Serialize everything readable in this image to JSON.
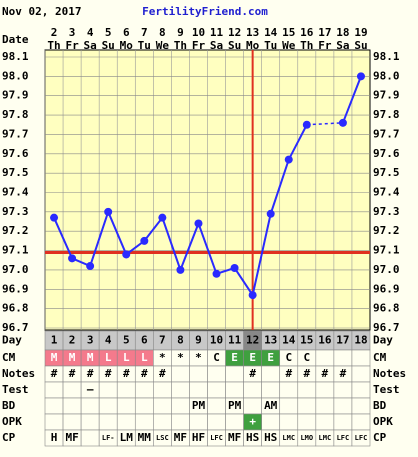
{
  "header": {
    "date": "Nov 02, 2017",
    "site": "FertilityFriend.com",
    "date_label": "Date"
  },
  "chart_data": {
    "type": "line",
    "categories": [
      "2",
      "3",
      "4",
      "5",
      "6",
      "7",
      "8",
      "9",
      "10",
      "11",
      "12",
      "13",
      "14",
      "15",
      "16",
      "17",
      "18",
      "19"
    ],
    "weekdays": [
      "Th",
      "Fr",
      "Sa",
      "Su",
      "Mo",
      "Tu",
      "We",
      "Th",
      "Fr",
      "Sa",
      "Su",
      "Mo",
      "Tu",
      "We",
      "Th",
      "Fr",
      "Sa",
      "Su"
    ],
    "series": [
      {
        "name": "Temperature",
        "color": "#2a2aff",
        "values": [
          97.27,
          97.06,
          97.02,
          97.3,
          97.08,
          97.15,
          97.27,
          97.0,
          97.24,
          96.98,
          97.01,
          96.87,
          97.29,
          97.57,
          97.75,
          null,
          97.76,
          98.0
        ]
      }
    ],
    "ylim": [
      96.7,
      98.1
    ],
    "yticks": [
      98.1,
      {
        "value": 98,
        "label": "98.0"
      },
      97.9,
      97.8,
      97.7,
      97.6,
      97.5,
      97.4,
      97.3,
      97.2,
      97.1,
      {
        "value": 97,
        "label": "97.0"
      },
      96.9,
      96.8,
      96.7
    ],
    "coverline": 97.09,
    "coverline_color": "#e03020",
    "ovulation_index": 11,
    "grid": true
  },
  "table": {
    "rows": [
      {
        "label": "Day",
        "cells": [
          1,
          2,
          3,
          4,
          5,
          6,
          7,
          8,
          9,
          10,
          11,
          12,
          13,
          14,
          15,
          16,
          17,
          18
        ]
      },
      {
        "label": "CM",
        "cells": [
          "M",
          "M",
          "M",
          "L",
          "L",
          "L",
          "*",
          "*",
          "*",
          "C",
          "E",
          "E",
          "E",
          "C",
          "C",
          null,
          null,
          null
        ],
        "colors": [
          "#f47a8c",
          "#f47a8c",
          "#f47a8c",
          "#f47a8c",
          "#f47a8c",
          "#f47a8c",
          null,
          null,
          null,
          null,
          "#3fa03f",
          "#3fa03f",
          "#3fa03f",
          null,
          null,
          null,
          null,
          null
        ]
      },
      {
        "label": "Notes",
        "cells": [
          "#",
          "#",
          "#",
          "#",
          "#",
          "#",
          "#",
          null,
          null,
          null,
          null,
          "#",
          null,
          "#",
          "#",
          "#",
          "#",
          null
        ]
      },
      {
        "label": "Test",
        "cells": [
          null,
          null,
          "–",
          null,
          null,
          null,
          null,
          null,
          null,
          null,
          null,
          null,
          null,
          null,
          null,
          null,
          null,
          null
        ]
      },
      {
        "label": "BD",
        "cells": [
          null,
          null,
          null,
          null,
          null,
          null,
          null,
          null,
          "PM",
          null,
          "PM",
          null,
          "AM",
          null,
          null,
          null,
          null,
          null
        ]
      },
      {
        "label": "OPK",
        "cells": [
          null,
          null,
          null,
          null,
          null,
          null,
          null,
          null,
          null,
          null,
          null,
          "+",
          null,
          null,
          null,
          null,
          null,
          null
        ],
        "colors": [
          null,
          null,
          null,
          null,
          null,
          null,
          null,
          null,
          null,
          null,
          null,
          "#3fa03f",
          null,
          null,
          null,
          null,
          null,
          null
        ]
      },
      {
        "label": "CP",
        "cells": [
          "H",
          "MF",
          null,
          "LF-",
          "LM",
          "MM",
          "LSC",
          "MF",
          "HF",
          "LFC",
          "MF",
          "HS",
          "HS",
          "LMC",
          "LMO",
          "LMC",
          "LFC",
          "LFC"
        ]
      }
    ]
  }
}
